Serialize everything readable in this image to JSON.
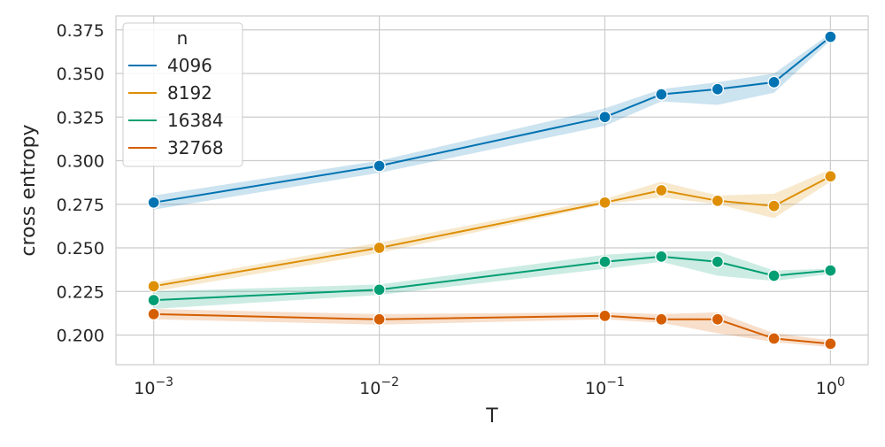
{
  "chart_data": {
    "type": "line",
    "xlabel": "T",
    "ylabel": "cross entropy",
    "x_scale": "log",
    "xlim": [
      0.00068,
      1.47
    ],
    "ylim": [
      0.183,
      0.383
    ],
    "grid": true,
    "x_ticks": [
      {
        "value": 0.001,
        "base": "10",
        "exp": "−3"
      },
      {
        "value": 0.01,
        "base": "10",
        "exp": "−2"
      },
      {
        "value": 0.1,
        "base": "10",
        "exp": "−1"
      },
      {
        "value": 1,
        "base": "10",
        "exp": "0"
      }
    ],
    "y_ticks": [
      {
        "value": 0.2,
        "label": "0.200"
      },
      {
        "value": 0.225,
        "label": "0.225"
      },
      {
        "value": 0.25,
        "label": "0.250"
      },
      {
        "value": 0.275,
        "label": "0.275"
      },
      {
        "value": 0.3,
        "label": "0.300"
      },
      {
        "value": 0.325,
        "label": "0.325"
      },
      {
        "value": 0.35,
        "label": "0.350"
      },
      {
        "value": 0.375,
        "label": "0.375"
      }
    ],
    "x": [
      0.001,
      0.01,
      0.1,
      0.178,
      0.316,
      0.562,
      1.0
    ],
    "legend": {
      "title": "n",
      "position": "top-left"
    },
    "series": [
      {
        "name": "4096",
        "color": "#0173b2",
        "values": [
          0.276,
          0.297,
          0.325,
          0.338,
          0.341,
          0.345,
          0.371
        ],
        "lower": [
          0.272,
          0.293,
          0.32,
          0.334,
          0.332,
          0.339,
          0.369
        ],
        "upper": [
          0.28,
          0.3,
          0.33,
          0.341,
          0.345,
          0.35,
          0.373
        ]
      },
      {
        "name": "8192",
        "color": "#de8f05",
        "values": [
          0.228,
          0.25,
          0.276,
          0.283,
          0.277,
          0.274,
          0.291
        ],
        "lower": [
          0.225,
          0.247,
          0.275,
          0.279,
          0.275,
          0.267,
          0.288
        ],
        "upper": [
          0.23,
          0.253,
          0.278,
          0.288,
          0.28,
          0.281,
          0.295
        ]
      },
      {
        "name": "16384",
        "color": "#029e73",
        "values": [
          0.22,
          0.226,
          0.242,
          0.245,
          0.242,
          0.234,
          0.237
        ],
        "lower": [
          0.215,
          0.223,
          0.238,
          0.242,
          0.234,
          0.231,
          0.235
        ],
        "upper": [
          0.225,
          0.229,
          0.246,
          0.248,
          0.248,
          0.237,
          0.238
        ]
      },
      {
        "name": "32768",
        "color": "#d55e00",
        "values": [
          0.212,
          0.209,
          0.211,
          0.209,
          0.209,
          0.198,
          0.195
        ],
        "lower": [
          0.209,
          0.206,
          0.209,
          0.207,
          0.201,
          0.196,
          0.193
        ],
        "upper": [
          0.215,
          0.212,
          0.213,
          0.212,
          0.213,
          0.201,
          0.197
        ]
      }
    ]
  }
}
